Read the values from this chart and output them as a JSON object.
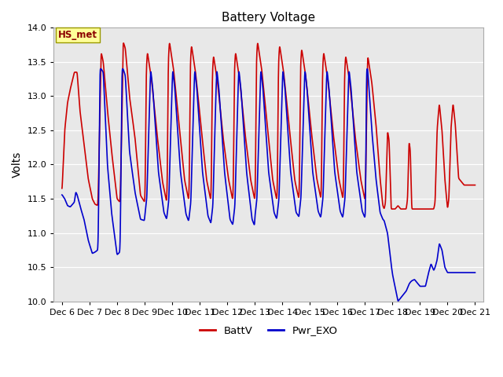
{
  "title": "Battery Voltage",
  "ylabel": "Volts",
  "xlim_days": [
    5.7,
    21.3
  ],
  "ylim": [
    10.0,
    14.0
  ],
  "yticks": [
    10.0,
    10.5,
    11.0,
    11.5,
    12.0,
    12.5,
    13.0,
    13.5,
    14.0
  ],
  "xtick_labels": [
    "Dec 6",
    "Dec 7",
    "Dec 8",
    "Dec 9",
    "Dec 10",
    "Dec 11",
    "Dec 12",
    "Dec 13",
    "Dec 14",
    "Dec 15",
    "Dec 16",
    "Dec 17",
    "Dec 18",
    "Dec 19",
    "Dec 20",
    "Dec 21"
  ],
  "xtick_positions": [
    6,
    7,
    8,
    9,
    10,
    11,
    12,
    13,
    14,
    15,
    16,
    17,
    18,
    19,
    20,
    21
  ],
  "battv_color": "#cc0000",
  "pwr_exo_color": "#0000cc",
  "background_color": "#e8e8e8",
  "title_fontsize": 11,
  "axis_label_fontsize": 10,
  "tick_fontsize": 8,
  "legend_label1": "BattV",
  "legend_label2": "Pwr_EXO",
  "annotation_text": "HS_met",
  "line_width": 1.2
}
